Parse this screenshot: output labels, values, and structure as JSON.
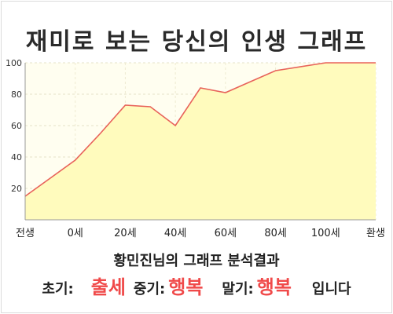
{
  "chart_data": {
    "type": "area",
    "title": "재미로 보는 당신의 인생 그래프",
    "x_tick_labels": [
      "전생",
      "0세",
      "20세",
      "40세",
      "60세",
      "80세",
      "100세",
      "환생"
    ],
    "y_tick_labels": [
      "20",
      "40",
      "60",
      "80",
      "100"
    ],
    "ylim": [
      0,
      100
    ],
    "grid": true,
    "series": [
      {
        "points": [
          {
            "x": "전생",
            "y": 15
          },
          {
            "x": "0세",
            "y": 38
          },
          {
            "x": "10세",
            "y": 55
          },
          {
            "x": "20세",
            "y": 73
          },
          {
            "x": "30세",
            "y": 72
          },
          {
            "x": "40세",
            "y": 60
          },
          {
            "x": "50세",
            "y": 84
          },
          {
            "x": "60세",
            "y": 81
          },
          {
            "x": "70세",
            "y": 88
          },
          {
            "x": "80세",
            "y": 95
          },
          {
            "x": "100세",
            "y": 100
          },
          {
            "x": "환생",
            "y": 100
          }
        ],
        "color": "#e8625a",
        "fill": "#fffbbd"
      }
    ]
  },
  "result": {
    "heading": "황민진님의 그래프 분석결과",
    "early_label": "초기:",
    "early_value": "출세",
    "middle_label": "중기:",
    "middle_value": "행복",
    "late_label": "말기:",
    "late_value": "행복",
    "ending": "입니다"
  }
}
